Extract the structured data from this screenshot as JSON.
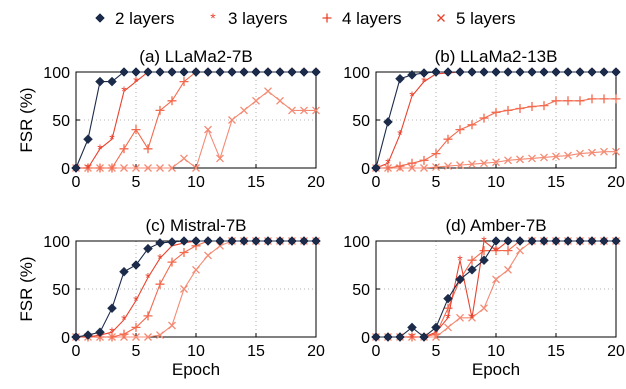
{
  "legend": {
    "placement": "top-center",
    "entries": [
      {
        "label": "2 layers",
        "marker": "diamond",
        "color": "#1c2b4a"
      },
      {
        "label": "3 layers",
        "marker": "star",
        "color": "#e8432d"
      },
      {
        "label": "4 layers",
        "marker": "plus",
        "color": "#e8432d"
      },
      {
        "label": "5 layers",
        "marker": "x",
        "color": "#e8432d"
      }
    ]
  },
  "colors": {
    "two_layers_line": "#1c2b4a",
    "three_layers_line": "#e8432d",
    "four_layers_line": "#f26b4f",
    "five_layers_line": "#f48a73",
    "grid": "#9a9a9a"
  },
  "chart_data": [
    {
      "type": "line",
      "title": "(a) LLaMa2-7B",
      "xlabel": "",
      "ylabel": "FSR (%)",
      "xlim": [
        0,
        20
      ],
      "ylim": [
        0,
        100
      ],
      "xticks": [
        "0",
        "5",
        "10",
        "15",
        "20"
      ],
      "yticks": [
        "0",
        "50",
        "100"
      ],
      "grid": true,
      "x": [
        0,
        1,
        2,
        3,
        4,
        5,
        6,
        7,
        8,
        9,
        10,
        11,
        12,
        13,
        14,
        15,
        16,
        17,
        18,
        19,
        20
      ],
      "series": [
        {
          "name": "2 layers",
          "values": [
            0,
            30,
            90,
            90,
            100,
            100,
            100,
            100,
            100,
            100,
            100,
            100,
            100,
            100,
            100,
            100,
            100,
            100,
            100,
            100,
            100
          ]
        },
        {
          "name": "3 layers",
          "values": [
            0,
            0,
            20,
            30,
            80,
            90,
            100,
            100,
            100,
            100,
            100,
            100,
            100,
            100,
            100,
            100,
            100,
            100,
            100,
            100,
            100
          ]
        },
        {
          "name": "4 layers",
          "values": [
            0,
            0,
            0,
            0,
            20,
            40,
            20,
            60,
            70,
            90,
            100,
            100,
            100,
            100,
            100,
            100,
            100,
            100,
            100,
            100,
            100
          ]
        },
        {
          "name": "5 layers",
          "values": [
            0,
            0,
            0,
            0,
            0,
            0,
            0,
            0,
            0,
            10,
            0,
            40,
            10,
            50,
            60,
            70,
            80,
            70,
            60,
            60,
            60
          ]
        }
      ]
    },
    {
      "type": "line",
      "title": "(b) LLaMa2-13B",
      "xlabel": "",
      "ylabel": "",
      "xlim": [
        0,
        20
      ],
      "ylim": [
        0,
        100
      ],
      "xticks": [
        "0",
        "5",
        "10",
        "15",
        "20"
      ],
      "yticks": [
        "0",
        "50",
        "100"
      ],
      "grid": true,
      "x": [
        0,
        1,
        2,
        3,
        4,
        5,
        6,
        7,
        8,
        9,
        10,
        11,
        12,
        13,
        14,
        15,
        16,
        17,
        18,
        19,
        20
      ],
      "series": [
        {
          "name": "2 layers",
          "values": [
            0,
            48,
            93,
            97,
            99,
            100,
            100,
            100,
            100,
            100,
            100,
            100,
            100,
            100,
            100,
            100,
            100,
            100,
            100,
            100,
            100
          ]
        },
        {
          "name": "3 layers",
          "values": [
            0,
            5,
            35,
            75,
            90,
            98,
            99,
            100,
            100,
            100,
            100,
            100,
            100,
            100,
            100,
            100,
            100,
            100,
            100,
            100,
            100
          ]
        },
        {
          "name": "4 layers",
          "values": [
            0,
            0,
            2,
            5,
            8,
            15,
            30,
            40,
            45,
            52,
            58,
            60,
            62,
            64,
            65,
            70,
            70,
            70,
            72,
            72,
            72
          ]
        },
        {
          "name": "5 layers",
          "values": [
            0,
            0,
            0,
            0,
            0,
            1,
            2,
            3,
            4,
            5,
            6,
            8,
            9,
            10,
            11,
            12,
            13,
            15,
            16,
            17,
            17
          ]
        }
      ]
    },
    {
      "type": "line",
      "title": "(c) Mistral-7B",
      "xlabel": "Epoch",
      "ylabel": "FSR (%)",
      "xlim": [
        0,
        20
      ],
      "ylim": [
        0,
        100
      ],
      "xticks": [
        "0",
        "5",
        "10",
        "15",
        "20"
      ],
      "yticks": [
        "0",
        "50",
        "100"
      ],
      "grid": true,
      "x": [
        0,
        1,
        2,
        3,
        4,
        5,
        6,
        7,
        8,
        9,
        10,
        11,
        12,
        13,
        14,
        15,
        16,
        17,
        18,
        19,
        20
      ],
      "series": [
        {
          "name": "2 layers",
          "values": [
            0,
            2,
            5,
            30,
            68,
            75,
            92,
            98,
            99,
            100,
            100,
            100,
            100,
            100,
            100,
            100,
            100,
            100,
            100,
            100,
            100
          ]
        },
        {
          "name": "3 layers",
          "values": [
            0,
            0,
            2,
            5,
            18,
            38,
            62,
            82,
            95,
            98,
            100,
            100,
            100,
            100,
            100,
            100,
            100,
            100,
            100,
            100,
            100
          ]
        },
        {
          "name": "4 layers",
          "values": [
            0,
            0,
            0,
            0,
            3,
            10,
            22,
            55,
            78,
            88,
            95,
            100,
            100,
            100,
            100,
            100,
            100,
            100,
            100,
            100,
            100
          ]
        },
        {
          "name": "5 layers",
          "values": [
            0,
            0,
            0,
            0,
            0,
            0,
            0,
            2,
            12,
            50,
            70,
            85,
            95,
            100,
            100,
            100,
            100,
            100,
            100,
            100,
            100
          ]
        }
      ]
    },
    {
      "type": "line",
      "title": "(d) Amber-7B",
      "xlabel": "Epoch",
      "ylabel": "",
      "xlim": [
        0,
        20
      ],
      "ylim": [
        0,
        100
      ],
      "xticks": [
        "0",
        "5",
        "10",
        "15",
        "20"
      ],
      "yticks": [
        "0",
        "50",
        "100"
      ],
      "grid": true,
      "x": [
        0,
        1,
        2,
        3,
        4,
        5,
        6,
        7,
        8,
        9,
        10,
        11,
        12,
        13,
        14,
        15,
        16,
        17,
        18,
        19,
        20
      ],
      "series": [
        {
          "name": "2 layers",
          "values": [
            0,
            0,
            0,
            10,
            0,
            10,
            40,
            60,
            70,
            80,
            100,
            100,
            100,
            100,
            100,
            100,
            100,
            100,
            100,
            100,
            100
          ]
        },
        {
          "name": "3 layers",
          "values": [
            0,
            0,
            0,
            0,
            0,
            5,
            20,
            80,
            20,
            100,
            90,
            100,
            100,
            100,
            100,
            100,
            100,
            100,
            100,
            100,
            100
          ]
        },
        {
          "name": "4 layers",
          "values": [
            0,
            0,
            0,
            0,
            0,
            3,
            30,
            60,
            80,
            90,
            90,
            90,
            100,
            100,
            100,
            100,
            100,
            100,
            100,
            100,
            100
          ]
        },
        {
          "name": "5 layers",
          "values": [
            0,
            0,
            0,
            0,
            0,
            0,
            10,
            20,
            20,
            30,
            60,
            70,
            90,
            100,
            100,
            100,
            100,
            100,
            100,
            100,
            100
          ]
        }
      ]
    }
  ]
}
